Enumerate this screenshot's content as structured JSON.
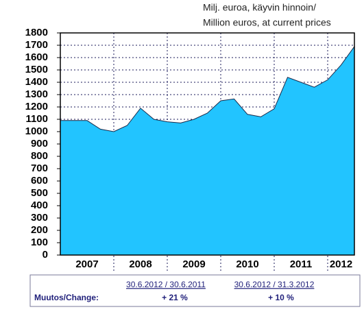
{
  "chart_data": {
    "type": "area",
    "subtitle_lines": [
      "Milj. euroa, käyvin hinnoin/",
      "Million euros, at current prices"
    ],
    "categories": [
      null,
      null,
      null,
      null,
      null,
      null,
      null,
      null,
      null,
      null,
      null,
      null,
      null,
      null,
      null,
      null,
      null,
      null,
      null,
      null,
      null,
      null,
      null
    ],
    "year_labels": [
      "2007",
      "2008",
      "2009",
      "2010",
      "2011",
      "2012"
    ],
    "values": [
      1090,
      1090,
      1090,
      1020,
      1000,
      1050,
      1190,
      1100,
      1080,
      1070,
      1100,
      1150,
      1250,
      1265,
      1140,
      1120,
      1185,
      1440,
      1400,
      1360,
      1420,
      1540,
      1690
    ],
    "color": "#22c4ff",
    "ylim": [
      0,
      1800
    ],
    "yticks": [
      0,
      100,
      200,
      300,
      400,
      500,
      600,
      700,
      800,
      900,
      1000,
      1100,
      1200,
      1300,
      1400,
      1500,
      1600,
      1700,
      1800
    ],
    "grid": true
  },
  "table": {
    "label": "Muutos/Change:",
    "columns": [
      {
        "header": "30.6.2012 / 30.6.2011",
        "value": "+ 21 %"
      },
      {
        "header": "30.6.2012 / 31.3.2012",
        "value": "+ 10 %"
      }
    ]
  }
}
